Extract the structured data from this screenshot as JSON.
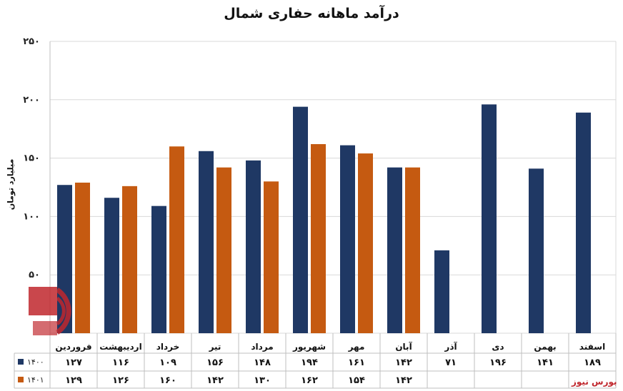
{
  "chart_data": {
    "type": "bar",
    "title": "درآمد ماهانه حفاری شمال",
    "ylabel": "میلیارد تومان",
    "ylim": [
      0,
      250
    ],
    "yticks": [
      "۲۵۰",
      "۲۰۰",
      "۱۵۰",
      "۱۰۰",
      "۵۰"
    ],
    "grid": true,
    "categories": [
      "فروردین",
      "اردیبهشت",
      "خرداد",
      "تیر",
      "مرداد",
      "شهریور",
      "مهر",
      "آبان",
      "آذر",
      "دی",
      "بهمن",
      "اسفند"
    ],
    "series": [
      {
        "name": "۱۴۰۰",
        "color": "#1f3864",
        "values": [
          127,
          116,
          109,
          156,
          148,
          194,
          161,
          142,
          71,
          196,
          141,
          189
        ],
        "labels": [
          "۱۲۷",
          "۱۱۶",
          "۱۰۹",
          "۱۵۶",
          "۱۴۸",
          "۱۹۴",
          "۱۶۱",
          "۱۴۲",
          "۷۱",
          "۱۹۶",
          "۱۴۱",
          "۱۸۹"
        ]
      },
      {
        "name": "۱۴۰۱",
        "color": "#c55a11",
        "values": [
          129,
          126,
          160,
          142,
          130,
          162,
          154,
          142,
          null,
          null,
          null,
          null
        ],
        "labels": [
          "۱۲۹",
          "۱۲۶",
          "۱۶۰",
          "۱۴۲",
          "۱۳۰",
          "۱۶۲",
          "۱۵۴",
          "۱۴۲",
          "",
          "",
          "",
          ""
        ]
      }
    ]
  },
  "brand": "بورس نیوز"
}
